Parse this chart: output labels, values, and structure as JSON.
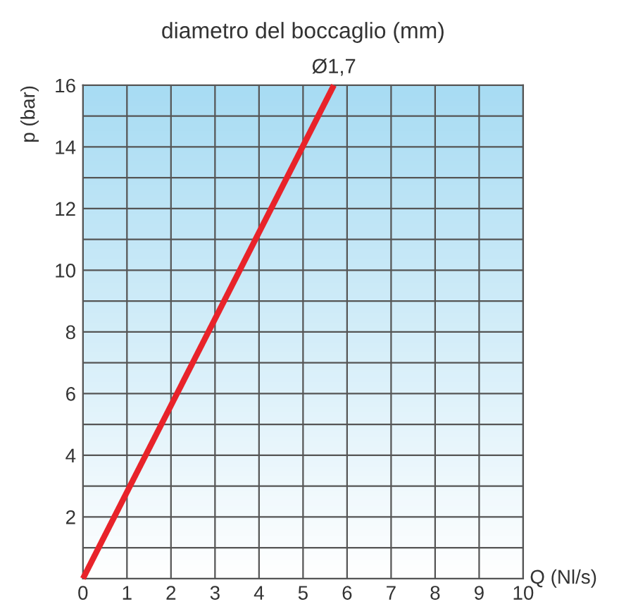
{
  "chart_data": {
    "type": "line",
    "title": "diametro del boccaglio (mm)",
    "xlabel": "Q (Nl/s)",
    "ylabel": "p (bar)",
    "x": [
      0,
      5.7
    ],
    "series": [
      {
        "color": "#e8232a",
        "values": [
          0,
          16
        ]
      }
    ],
    "xlim": [
      0,
      10
    ],
    "ylim": [
      0,
      16
    ],
    "xticks": [
      0,
      1,
      2,
      3,
      4,
      5,
      6,
      7,
      8,
      9,
      10
    ],
    "yticks": [
      {
        "value": 1,
        "label": null
      },
      2,
      {
        "value": 3,
        "label": null
      },
      4,
      {
        "value": 5,
        "label": null
      },
      6,
      {
        "value": 7,
        "label": null
      },
      8,
      {
        "value": 9,
        "label": null
      },
      10,
      {
        "value": 11,
        "label": null
      },
      12,
      {
        "value": 13,
        "label": null
      },
      14,
      {
        "value": 15,
        "label": null
      },
      16
    ],
    "grid": true,
    "marker": "none",
    "line_style": "solid",
    "annotations": [
      {
        "text": "Ø1,7",
        "x": 5.7,
        "y": 16
      }
    ]
  }
}
